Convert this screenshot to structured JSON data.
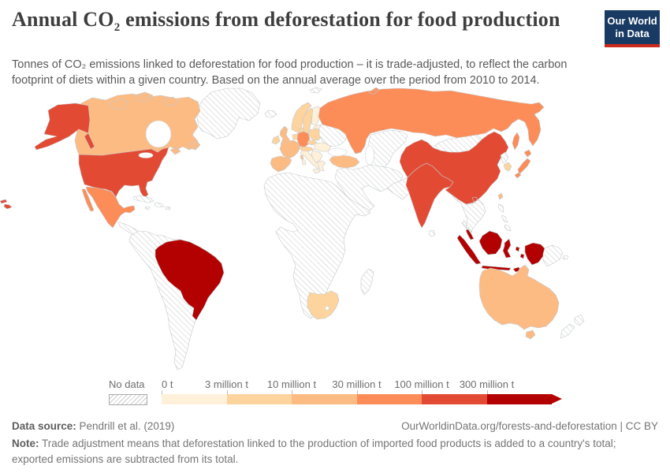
{
  "header": {
    "title_prefix": "Annual CO",
    "title_sub": "2",
    "title_suffix": " emissions from deforestation for food production",
    "subtitle": "Tonnes of CO₂ emissions linked to deforestation for food production – it is trade-adjusted, to reflect the carbon footprint of diets within a given country. Based on the annual average over the period from 2010 to 2014.",
    "logo": {
      "line1": "Our World",
      "line2": "in Data",
      "bg_color": "#183a63",
      "stripe_color": "#cc2b1c"
    }
  },
  "legend": {
    "no_data_label": "No data",
    "bin_labels": [
      "0 t",
      "3 million t",
      "10 million t",
      "30 million t",
      "100 million t",
      "300 million t"
    ],
    "bin_colors": [
      "#fef0d9",
      "#fdd49e",
      "#fdbb84",
      "#fc8d59",
      "#e34a33",
      "#b30000"
    ],
    "no_data_hatch_color": "#cccccc"
  },
  "footer": {
    "source_label": "Data source:",
    "source_text": " Pendrill et al. (2019)",
    "link_text": "OurWorldinData.org/forests-and-deforestation | CC BY",
    "note_label": "Note:",
    "note_text": " Trade adjustment means that deforestation linked to the production of imported food products is added to a country's total; exported emissions are subtracted from its total."
  },
  "chart_data": {
    "type": "heatmap",
    "subtype": "world-choropleth",
    "title": "Annual CO₂ emissions from deforestation for food production",
    "unit": "tonnes CO₂ per year (annual average 2010–2014, trade-adjusted)",
    "bin_edges_labels": [
      "0 t",
      "3 million t",
      "10 million t",
      "30 million t",
      "100 million t",
      "300 million t"
    ],
    "bin_ranges": [
      "0–3 million t",
      "3–10 million t",
      "10–30 million t",
      "30–100 million t",
      "100–300 million t",
      "300+ million t"
    ],
    "legend_position": "bottom",
    "country_bins": {
      "united-states": 4,
      "canada": 2,
      "greenland": "no-data",
      "mexico": 3,
      "central-america": "no-data",
      "cuba": "no-data",
      "hispaniola": "no-data",
      "jamaica": "no-data",
      "puerto-rico": "no-data",
      "brazil": 5,
      "south-america-other": "no-data",
      "iceland": "no-data",
      "norway": 1,
      "sweden": 1,
      "finland": 0,
      "denmark": 1,
      "united-kingdom": 2,
      "ireland": 1,
      "benelux": 1,
      "france": 2,
      "spain-portugal": 2,
      "germany": 3,
      "italy": 0,
      "switzerland-austria": 1,
      "poland": 1,
      "czechia": 1,
      "baltic-states": 0,
      "hungary-romania": 0,
      "balkans": 0,
      "greece": 0,
      "cyprus": 0,
      "ukraine-belarus": "no-data",
      "svalbard": "no-data",
      "russia": 3,
      "turkey": 2,
      "central-asia": "no-data",
      "middle-east": "no-data",
      "africa-mainland": "no-data",
      "south-africa": 1,
      "madagascar": "no-data",
      "pakistan-afghanistan": "no-data",
      "india": 4,
      "sri-lanka": "no-data",
      "china": 4,
      "mongolia": "no-data",
      "north-korea": "no-data",
      "south-korea": 1,
      "japan": 3,
      "taiwan": 2,
      "mainland-southeast-asia": "no-data",
      "philippines": "no-data",
      "indonesia": 5,
      "malaysia": 5,
      "papua-new-guinea": "no-data",
      "australia": 2,
      "new-zealand": "no-data"
    }
  }
}
